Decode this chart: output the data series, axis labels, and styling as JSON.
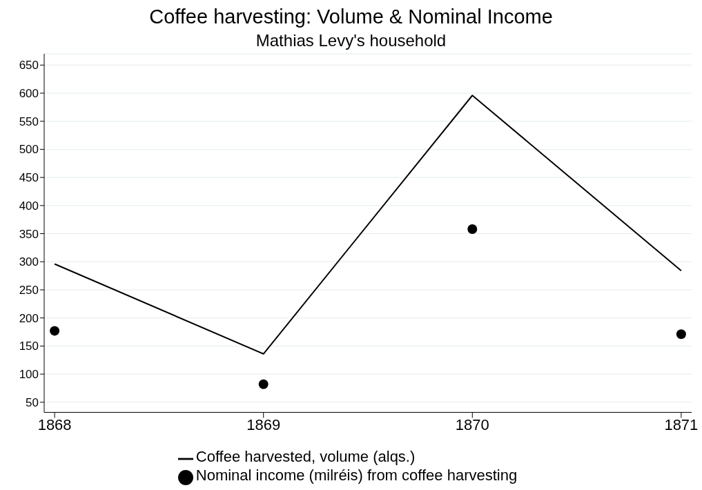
{
  "chart_data": {
    "type": "line",
    "title": "Coffee harvesting: Volume & Nominal Income",
    "subtitle": "Mathias Levy's household",
    "x": [
      1868,
      1869,
      1870,
      1871
    ],
    "series": [
      {
        "name": "Coffee harvested, volume (alqs.)",
        "color": "#000000",
        "marker": "none",
        "values": [
          296,
          136,
          596,
          284
        ]
      },
      {
        "name": "Nominal income (milréis) from coffee harvesting",
        "type": "scatter",
        "color": "#000000",
        "marker": "circle",
        "values": [
          177,
          82,
          358,
          171
        ]
      }
    ],
    "xlim": [
      1867.95,
      1871.05
    ],
    "xticks": [
      1868,
      1869,
      1870,
      1871
    ],
    "ylim": [
      32,
      670
    ],
    "yticks": [
      50,
      100,
      150,
      200,
      250,
      300,
      350,
      400,
      450,
      500,
      550,
      600,
      650
    ],
    "grid": "y",
    "legend": "bottom"
  }
}
